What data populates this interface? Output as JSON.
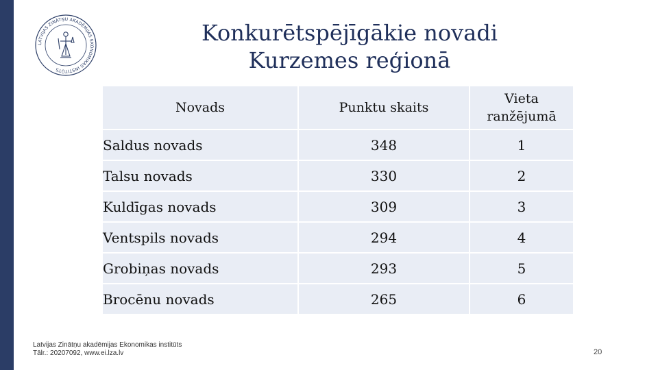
{
  "logo": {
    "ring_text": "LATVIJAS ZINĀTŅU AKADĒMIJAS EKONOMIKAS INSTITŪTS",
    "color": "#2b3d66"
  },
  "title": {
    "line1": "Konkurētspējīgākie novadi",
    "line2": "Kurzemes reģionā"
  },
  "table": {
    "headers": {
      "col1": "Novads",
      "col2": "Punktu skaits",
      "col3_line1": "Vieta",
      "col3_line2": "ranžējumā"
    },
    "rows": [
      {
        "name": "Saldus novads",
        "points": "348",
        "rank": "1"
      },
      {
        "name": "Talsu novads",
        "points": "330",
        "rank": "2"
      },
      {
        "name": "Kuldīgas novads",
        "points": "309",
        "rank": "3"
      },
      {
        "name": "Ventspils novads",
        "points": "294",
        "rank": "4"
      },
      {
        "name": "Grobiņas novads",
        "points": "293",
        "rank": "5"
      },
      {
        "name": "Brocēnu novads",
        "points": "265",
        "rank": "6"
      }
    ]
  },
  "footer": {
    "line1": "Latvijas Zinātņu akadēmijas Ekonomikas institūts",
    "line2": "Tālr.: 20207092, www.ei.lza.lv"
  },
  "page_number": "20",
  "colors": {
    "accent": "#2b3d66",
    "title": "#1f2f5a",
    "cell_bg": "#e9edf5"
  }
}
